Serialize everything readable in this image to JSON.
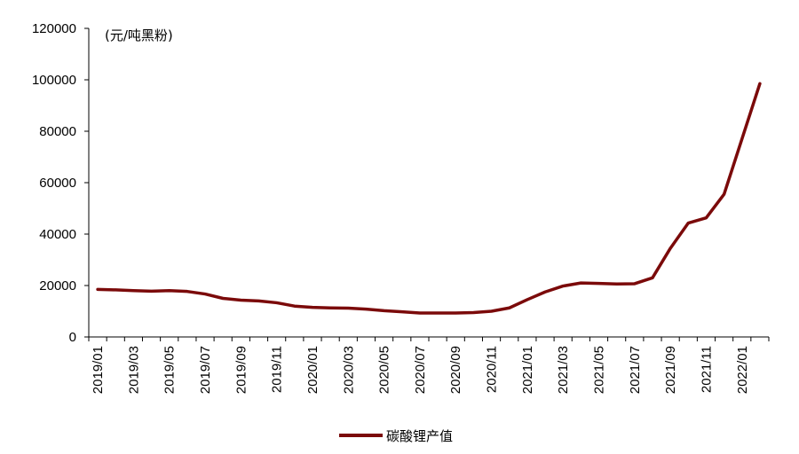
{
  "chart_data": {
    "type": "line",
    "unit_label": "(元/吨黑粉)",
    "x_tick_labels": [
      "2019/01",
      "2019/03",
      "2019/05",
      "2019/07",
      "2019/09",
      "2019/11",
      "2020/01",
      "2020/03",
      "2020/05",
      "2020/07",
      "2020/09",
      "2020/11",
      "2021/01",
      "2021/03",
      "2021/05",
      "2021/07",
      "2021/09",
      "2021/11",
      "2022/01"
    ],
    "y_ticks": [
      0,
      20000,
      40000,
      60000,
      80000,
      100000,
      120000
    ],
    "ylim": [
      0,
      120000
    ],
    "x": [
      "2019/01",
      "2019/02",
      "2019/03",
      "2019/04",
      "2019/05",
      "2019/06",
      "2019/07",
      "2019/08",
      "2019/09",
      "2019/10",
      "2019/11",
      "2019/12",
      "2020/01",
      "2020/02",
      "2020/03",
      "2020/04",
      "2020/05",
      "2020/06",
      "2020/07",
      "2020/08",
      "2020/09",
      "2020/10",
      "2020/11",
      "2020/12",
      "2021/01",
      "2021/02",
      "2021/03",
      "2021/04",
      "2021/05",
      "2021/06",
      "2021/07",
      "2021/08",
      "2021/09",
      "2021/10",
      "2021/11",
      "2021/12",
      "2022/01",
      "2022/02"
    ],
    "series": [
      {
        "name": "碳酸锂产值",
        "color": "#7b0a0a",
        "values": [
          18500,
          18300,
          18000,
          17800,
          18000,
          17700,
          16700,
          15000,
          14300,
          14000,
          13300,
          12000,
          11500,
          11300,
          11200,
          10800,
          10200,
          9800,
          9300,
          9300,
          9300,
          9500,
          10000,
          11300,
          14500,
          17500,
          19800,
          21000,
          20800,
          20600,
          20700,
          23000,
          34500,
          44300,
          46300,
          55500,
          77000,
          98500
        ]
      }
    ],
    "grid": false,
    "legend_position": "bottom-center"
  }
}
